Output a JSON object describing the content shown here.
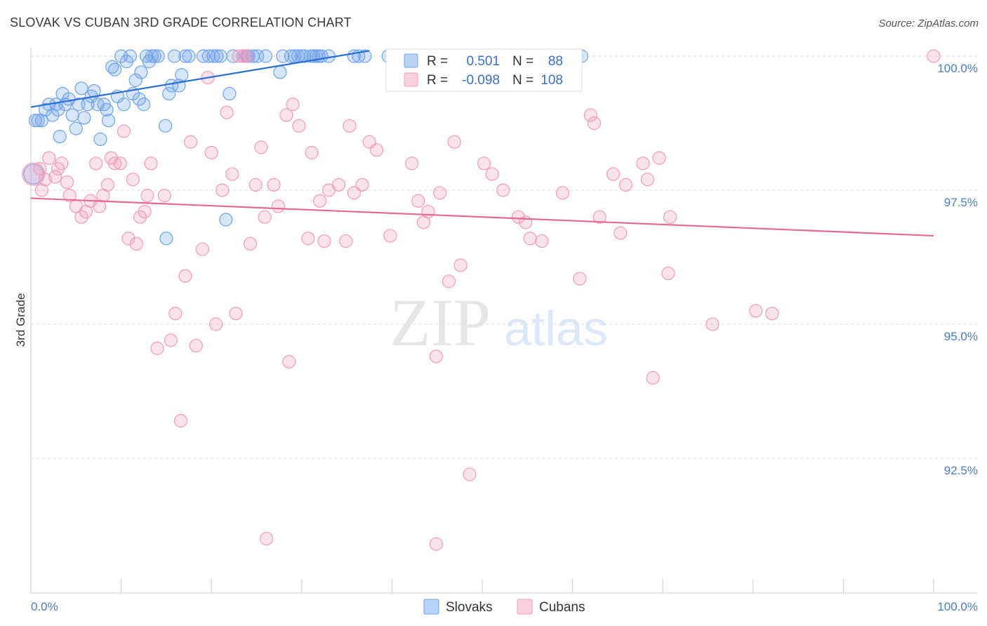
{
  "title": "SLOVAK VS CUBAN 3RD GRADE CORRELATION CHART",
  "source": "Source: ZipAtlas.com",
  "watermark": {
    "zip": "ZIP",
    "atlas": "atlas"
  },
  "colors": {
    "slovaks": "#6fa3e8",
    "slovaks_line": "#2a6fd4",
    "cubans": "#f29bb8",
    "cubans_line": "#e46a95",
    "tick": "#4a7cc9",
    "grid": "#dddddd"
  },
  "legend": {
    "r_label": "R =",
    "n_label": "N =",
    "slovaks": {
      "r": "0.501",
      "n": "88"
    },
    "cubans": {
      "r": "-0.098",
      "n": "108"
    }
  },
  "chart_data": {
    "type": "scatter",
    "ylabel": "3rd Grade",
    "xlabel": "",
    "xlim": [
      0,
      100
    ],
    "ylim": [
      90.0,
      100.25
    ],
    "x_tick_labels": [
      "0.0%",
      "100.0%"
    ],
    "y_ticks": [
      {
        "value": 92.5,
        "label": "92.5%"
      },
      {
        "value": 95.0,
        "label": "95.0%"
      },
      {
        "value": 97.5,
        "label": "97.5%"
      },
      {
        "value": 100.0,
        "label": "100.0%"
      }
    ],
    "series": [
      {
        "name": "Slovaks",
        "r": 0.501,
        "n": 88,
        "trend": [
          [
            0,
            99.05
          ],
          [
            37.5,
            100.1
          ]
        ],
        "points": [
          [
            0.3,
            97.8
          ],
          [
            0.5,
            98.8
          ],
          [
            0.8,
            98.8
          ],
          [
            1.2,
            98.8
          ],
          [
            1.6,
            99.0
          ],
          [
            2.0,
            99.1
          ],
          [
            2.4,
            98.9
          ],
          [
            2.8,
            99.1
          ],
          [
            3.0,
            99.0
          ],
          [
            3.2,
            98.5
          ],
          [
            3.5,
            99.3
          ],
          [
            3.8,
            99.1
          ],
          [
            4.2,
            99.2
          ],
          [
            4.6,
            98.9
          ],
          [
            5.0,
            98.65
          ],
          [
            5.3,
            99.1
          ],
          [
            5.6,
            99.4
          ],
          [
            5.9,
            98.85
          ],
          [
            6.3,
            99.1
          ],
          [
            6.7,
            99.25
          ],
          [
            7.0,
            99.35
          ],
          [
            7.4,
            99.1
          ],
          [
            7.7,
            98.45
          ],
          [
            8.1,
            99.1
          ],
          [
            8.4,
            99.0
          ],
          [
            8.6,
            98.8
          ],
          [
            9.0,
            99.8
          ],
          [
            9.3,
            99.75
          ],
          [
            9.6,
            99.25
          ],
          [
            10.0,
            100.0
          ],
          [
            10.3,
            99.1
          ],
          [
            10.6,
            99.9
          ],
          [
            11.0,
            100.0
          ],
          [
            11.3,
            99.3
          ],
          [
            11.6,
            99.55
          ],
          [
            12.0,
            99.2
          ],
          [
            12.2,
            99.7
          ],
          [
            12.5,
            99.1
          ],
          [
            12.8,
            100.0
          ],
          [
            13.1,
            99.9
          ],
          [
            13.4,
            100.0
          ],
          [
            13.7,
            100.0
          ],
          [
            14.1,
            100.0
          ],
          [
            14.9,
            98.7
          ],
          [
            15.3,
            99.3
          ],
          [
            15.6,
            99.45
          ],
          [
            15.9,
            100.0
          ],
          [
            16.4,
            99.45
          ],
          [
            16.7,
            99.65
          ],
          [
            17.1,
            100.0
          ],
          [
            17.5,
            100.0
          ],
          [
            19.1,
            100.0
          ],
          [
            19.7,
            100.0
          ],
          [
            20.2,
            100.0
          ],
          [
            20.6,
            100.0
          ],
          [
            21.0,
            100.0
          ],
          [
            21.6,
            96.95
          ],
          [
            22.0,
            99.3
          ],
          [
            22.4,
            100.0
          ],
          [
            23.5,
            100.0
          ],
          [
            23.9,
            100.0
          ],
          [
            24.1,
            100.0
          ],
          [
            24.6,
            100.0
          ],
          [
            25.1,
            100.0
          ],
          [
            26.0,
            100.0
          ],
          [
            27.6,
            99.7
          ],
          [
            27.9,
            100.0
          ],
          [
            28.8,
            100.0
          ],
          [
            29.2,
            100.0
          ],
          [
            29.6,
            100.0
          ],
          [
            30.0,
            100.0
          ],
          [
            30.3,
            100.0
          ],
          [
            31.0,
            100.0
          ],
          [
            31.3,
            100.0
          ],
          [
            31.6,
            100.0
          ],
          [
            31.9,
            100.0
          ],
          [
            32.2,
            100.0
          ],
          [
            33.0,
            100.0
          ],
          [
            35.8,
            100.0
          ],
          [
            36.3,
            100.0
          ],
          [
            37.0,
            100.0
          ],
          [
            39.6,
            100.0
          ],
          [
            40.5,
            100.0
          ],
          [
            49.6,
            100.0
          ],
          [
            52.3,
            100.0
          ],
          [
            56.4,
            100.0
          ],
          [
            61.0,
            100.0
          ],
          [
            15.0,
            96.6
          ]
        ]
      },
      {
        "name": "Cubans",
        "r": -0.098,
        "n": 108,
        "trend": [
          [
            0,
            97.35
          ],
          [
            100,
            96.65
          ]
        ],
        "points": [
          [
            0.3,
            97.8
          ],
          [
            1.0,
            97.9
          ],
          [
            1.6,
            97.7
          ],
          [
            2.0,
            98.1
          ],
          [
            2.7,
            97.75
          ],
          [
            3.0,
            97.9
          ],
          [
            3.4,
            98.0
          ],
          [
            4.0,
            97.65
          ],
          [
            4.3,
            97.4
          ],
          [
            5.0,
            97.2
          ],
          [
            5.6,
            97.0
          ],
          [
            6.1,
            97.1
          ],
          [
            6.6,
            97.3
          ],
          [
            7.2,
            98.0
          ],
          [
            7.6,
            97.2
          ],
          [
            8.0,
            97.4
          ],
          [
            8.5,
            97.6
          ],
          [
            8.9,
            98.1
          ],
          [
            9.3,
            98.0
          ],
          [
            9.9,
            98.0
          ],
          [
            10.3,
            98.6
          ],
          [
            10.8,
            96.6
          ],
          [
            11.3,
            97.7
          ],
          [
            11.7,
            96.5
          ],
          [
            12.1,
            97.0
          ],
          [
            12.6,
            97.1
          ],
          [
            12.9,
            97.4
          ],
          [
            13.3,
            98.0
          ],
          [
            14.0,
            94.55
          ],
          [
            14.8,
            97.4
          ],
          [
            15.5,
            94.7
          ],
          [
            16.0,
            95.2
          ],
          [
            16.6,
            93.2
          ],
          [
            17.1,
            95.9
          ],
          [
            17.7,
            98.4
          ],
          [
            18.3,
            94.6
          ],
          [
            19.0,
            96.4
          ],
          [
            19.6,
            99.6
          ],
          [
            20.0,
            98.2
          ],
          [
            20.5,
            95.0
          ],
          [
            21.2,
            97.5
          ],
          [
            21.7,
            98.95
          ],
          [
            22.3,
            97.8
          ],
          [
            22.7,
            95.2
          ],
          [
            23.5,
            100.0
          ],
          [
            24.0,
            100.0
          ],
          [
            24.3,
            96.5
          ],
          [
            24.9,
            97.6
          ],
          [
            25.5,
            98.3
          ],
          [
            25.9,
            97.0
          ],
          [
            26.9,
            97.6
          ],
          [
            27.4,
            97.2
          ],
          [
            28.3,
            98.9
          ],
          [
            28.6,
            94.3
          ],
          [
            29.0,
            99.1
          ],
          [
            29.7,
            98.7
          ],
          [
            30.7,
            96.6
          ],
          [
            31.1,
            98.2
          ],
          [
            32.0,
            97.3
          ],
          [
            32.5,
            96.55
          ],
          [
            33.0,
            97.5
          ],
          [
            34.1,
            97.6
          ],
          [
            34.9,
            96.55
          ],
          [
            35.3,
            98.7
          ],
          [
            35.8,
            97.45
          ],
          [
            36.7,
            97.6
          ],
          [
            37.5,
            98.4
          ],
          [
            38.3,
            98.25
          ],
          [
            39.8,
            96.65
          ],
          [
            42.2,
            98.0
          ],
          [
            42.9,
            97.3
          ],
          [
            43.5,
            96.9
          ],
          [
            44.0,
            97.1
          ],
          [
            44.9,
            94.4
          ],
          [
            45.3,
            97.45
          ],
          [
            46.3,
            95.8
          ],
          [
            46.9,
            98.4
          ],
          [
            47.6,
            96.1
          ],
          [
            48.6,
            92.2
          ],
          [
            50.2,
            98.0
          ],
          [
            51.1,
            97.8
          ],
          [
            52.3,
            97.5
          ],
          [
            54.0,
            97.0
          ],
          [
            54.8,
            96.9
          ],
          [
            55.3,
            96.6
          ],
          [
            56.6,
            96.55
          ],
          [
            58.9,
            97.45
          ],
          [
            60.8,
            95.85
          ],
          [
            62.0,
            98.9
          ],
          [
            62.4,
            98.75
          ],
          [
            63.0,
            97.0
          ],
          [
            64.5,
            97.8
          ],
          [
            65.3,
            96.7
          ],
          [
            65.9,
            97.6
          ],
          [
            67.8,
            98.0
          ],
          [
            68.3,
            97.7
          ],
          [
            68.9,
            94.0
          ],
          [
            69.6,
            98.1
          ],
          [
            70.6,
            95.95
          ],
          [
            70.8,
            97.0
          ],
          [
            75.5,
            95.0
          ],
          [
            80.3,
            95.25
          ],
          [
            82.1,
            95.2
          ],
          [
            100.0,
            100.0
          ],
          [
            26.1,
            91.0
          ],
          [
            44.9,
            90.9
          ],
          [
            23.0,
            100.0
          ],
          [
            1.2,
            97.5
          ]
        ]
      }
    ]
  }
}
